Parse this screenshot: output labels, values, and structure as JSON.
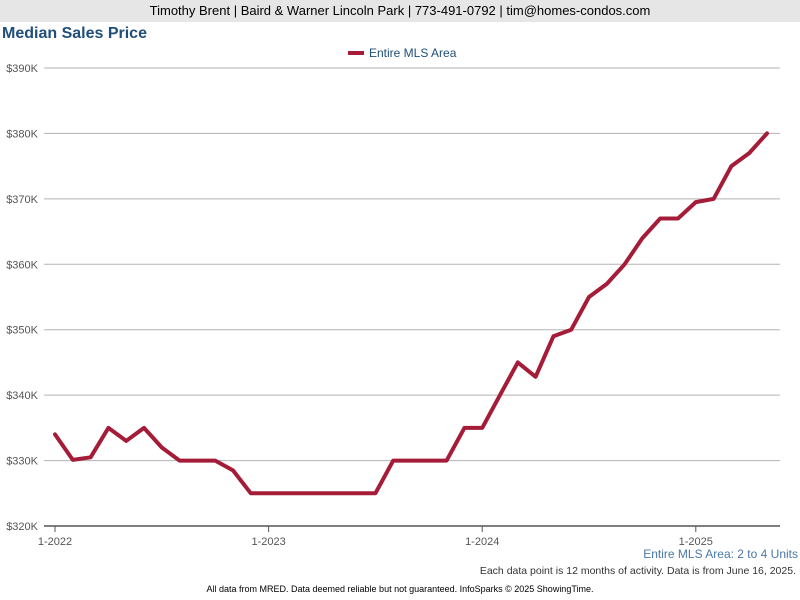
{
  "header": {
    "banner": "Timothy Brent | Baird & Warner Lincoln Park | 773-491-0792 | tim@homes-condos.com"
  },
  "chart_data": {
    "type": "line",
    "title": "Median Sales Price",
    "x_ticks": [
      "1-2022",
      "1-2023",
      "1-2024",
      "1-2025"
    ],
    "y_ticks": [
      "$320K",
      "$330K",
      "$340K",
      "$350K",
      "$360K",
      "$370K",
      "$380K",
      "$390K"
    ],
    "ylim": [
      320000,
      390000
    ],
    "grid": true,
    "legend_position": "top-center",
    "x": [
      "2022-01",
      "2022-02",
      "2022-03",
      "2022-04",
      "2022-05",
      "2022-06",
      "2022-07",
      "2022-08",
      "2022-09",
      "2022-10",
      "2022-11",
      "2022-12",
      "2023-01",
      "2023-02",
      "2023-03",
      "2023-04",
      "2023-05",
      "2023-06",
      "2023-07",
      "2023-08",
      "2023-09",
      "2023-10",
      "2023-11",
      "2023-12",
      "2024-01",
      "2024-02",
      "2024-03",
      "2024-04",
      "2024-05",
      "2024-06",
      "2024-07",
      "2024-08",
      "2024-09",
      "2024-10",
      "2024-11",
      "2024-12",
      "2025-01",
      "2025-02",
      "2025-03",
      "2025-04",
      "2025-05"
    ],
    "series": [
      {
        "name": "Entire MLS Area",
        "color": "#a51c38",
        "values": [
          334000,
          330100,
          330500,
          335000,
          333000,
          335000,
          332000,
          330000,
          330000,
          330000,
          328500,
          325000,
          325000,
          325000,
          325000,
          325000,
          325000,
          325000,
          325000,
          330000,
          330000,
          330000,
          330000,
          335000,
          335000,
          340000,
          345000,
          342800,
          349000,
          350000,
          355000,
          357000,
          360000,
          364000,
          367000,
          367000,
          369500,
          370000,
          375000,
          377000,
          380000
        ]
      }
    ]
  },
  "area_label": "Entire MLS Area: 2 to 4 Units",
  "note": "Each data point is 12 months of activity. Data is from June 16, 2025.",
  "footer": "All data from MRED. Data deemed reliable but not guaranteed. InfoSparks © 2025 ShowingTime."
}
